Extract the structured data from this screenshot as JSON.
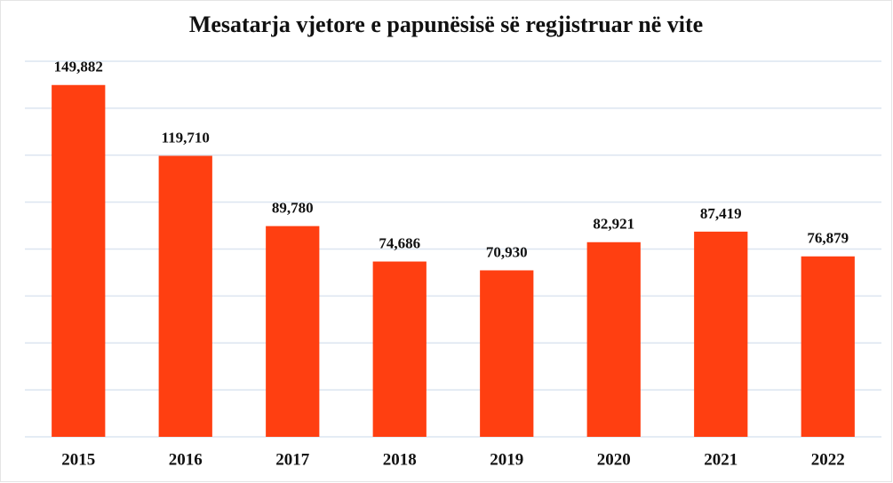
{
  "chart_data": {
    "type": "bar",
    "title": "Mesatarja vjetore e papunësisë së regjistruar në vite",
    "categories": [
      "2015",
      "2016",
      "2017",
      "2018",
      "2019",
      "2020",
      "2021",
      "2022"
    ],
    "values": [
      149882,
      119710,
      89780,
      74686,
      70930,
      82921,
      87419,
      76879
    ],
    "value_labels": [
      "149,882",
      "119,710",
      "89,780",
      "74,686",
      "70,930",
      "82,921",
      "87,419",
      "76,879"
    ],
    "color": "#ff3f11",
    "ylim": [
      0,
      160000
    ],
    "yticks": [
      0,
      20000,
      40000,
      60000,
      80000,
      100000,
      120000,
      140000,
      160000
    ],
    "grid": true
  }
}
